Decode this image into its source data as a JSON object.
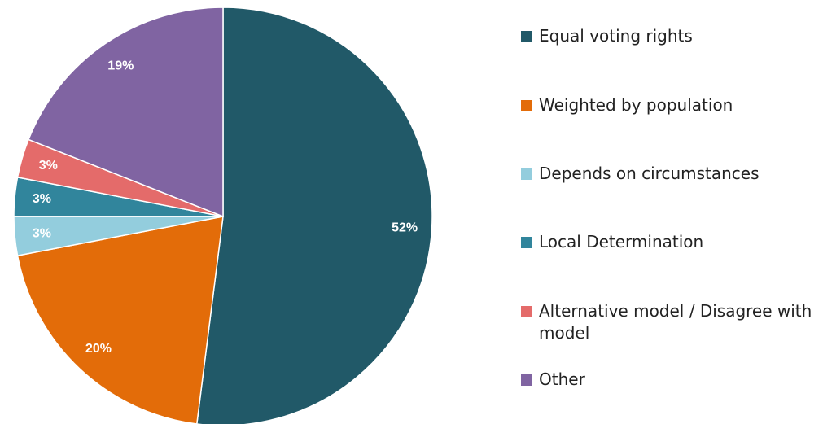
{
  "chart_data": {
    "type": "pie",
    "categories": [
      "Equal voting rights",
      "Weighted by population",
      "Depends on circumstances",
      "Local Determination",
      "Alternative model / Disagree with model",
      "Other"
    ],
    "values": [
      52,
      20,
      3,
      3,
      3,
      19
    ],
    "value_labels": [
      "52%",
      "20%",
      "3%",
      "3%",
      "3%",
      "19%"
    ],
    "colors": [
      "#215968",
      "#e36c09",
      "#93cddd",
      "#31859c",
      "#e46b6a",
      "#8064a2"
    ],
    "legend": "right"
  }
}
